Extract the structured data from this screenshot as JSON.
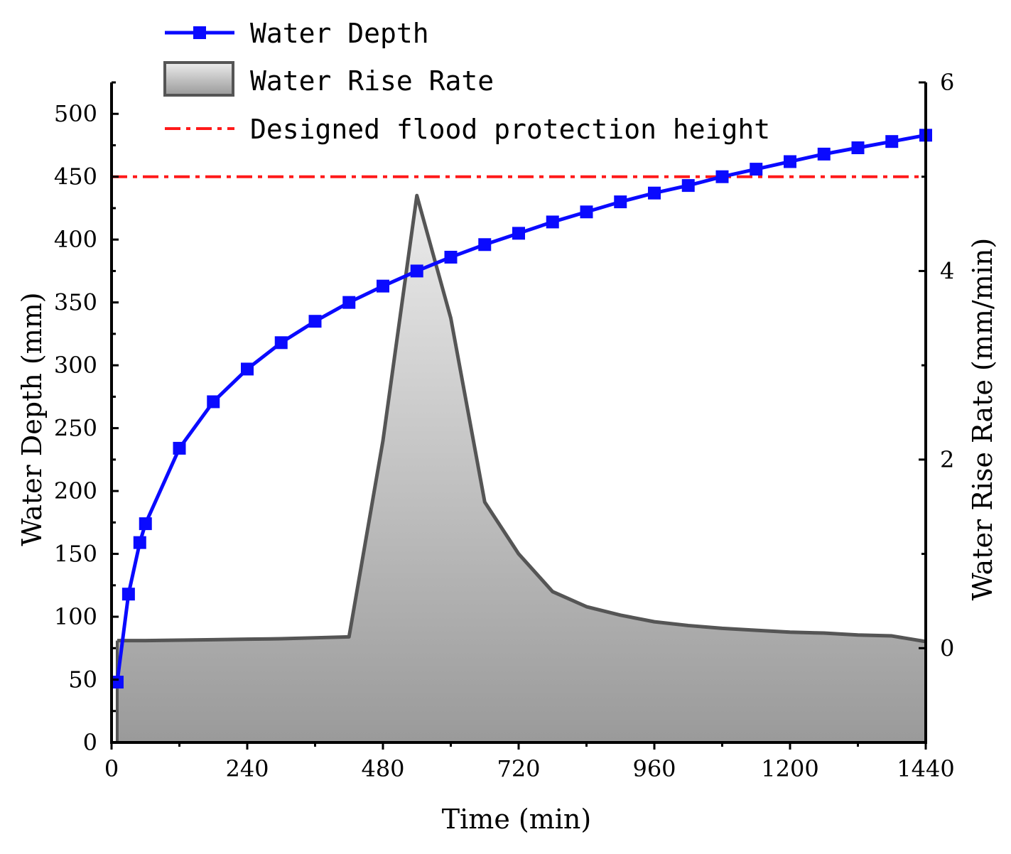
{
  "chart_data": {
    "type": "line+area (dual y-axis)",
    "xlabel": "Time (min)",
    "ylabel_left": "Water Depth (mm)",
    "ylabel_right": "Water Rise Rate (mm/min)",
    "xlim": [
      0,
      1440
    ],
    "ylim_left": [
      0,
      525
    ],
    "ylim_right": [
      -1,
      6
    ],
    "x_ticks": [
      0,
      240,
      480,
      720,
      960,
      1200,
      1440
    ],
    "y_left_ticks": [
      0,
      50,
      100,
      150,
      200,
      250,
      300,
      350,
      400,
      450,
      500
    ],
    "y_right_ticks": [
      0,
      2,
      4,
      6
    ],
    "legend": {
      "position": "top-left",
      "entries": [
        "Water Depth",
        "Water Rise Rate",
        "Designed flood protection height"
      ]
    },
    "series": [
      {
        "name": "Water Depth",
        "type": "line",
        "axis": "left",
        "color": "#0a0aff",
        "marker": "square",
        "x": [
          10,
          30,
          50,
          60,
          120,
          180,
          240,
          300,
          360,
          420,
          480,
          540,
          600,
          660,
          720,
          780,
          840,
          900,
          960,
          1020,
          1080,
          1140,
          1200,
          1260,
          1320,
          1380,
          1440
        ],
        "y": [
          48,
          118,
          159,
          174,
          234,
          271,
          297,
          318,
          335,
          350,
          363,
          375,
          386,
          396,
          405,
          414,
          422,
          430,
          437,
          443,
          450,
          456,
          462,
          468,
          473,
          478,
          483
        ]
      },
      {
        "name": "Water Rise Rate",
        "type": "area",
        "axis": "right",
        "color": "#9a9a9a",
        "x": [
          10,
          60,
          120,
          180,
          240,
          300,
          360,
          420,
          480,
          540,
          600,
          660,
          720,
          780,
          840,
          900,
          960,
          1020,
          1080,
          1140,
          1200,
          1260,
          1320,
          1380,
          1440
        ],
        "y": [
          0.08,
          0.08,
          0.085,
          0.09,
          0.095,
          0.1,
          0.11,
          0.12,
          2.2,
          4.8,
          3.5,
          1.55,
          1.0,
          0.6,
          0.44,
          0.35,
          0.28,
          0.24,
          0.21,
          0.19,
          0.17,
          0.16,
          0.14,
          0.13,
          0.07
        ]
      },
      {
        "name": "Designed flood protection height",
        "type": "hline",
        "axis": "left",
        "color": "#ff1a1a",
        "y": 450
      }
    ]
  }
}
